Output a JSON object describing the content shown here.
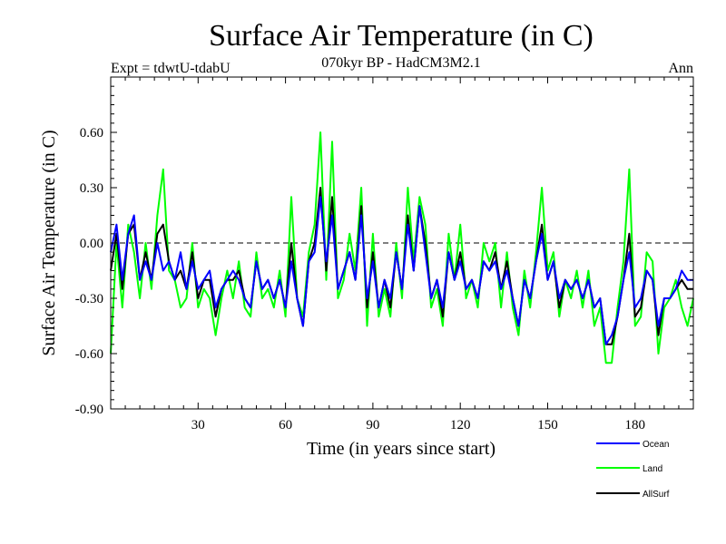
{
  "chart_data": {
    "type": "line",
    "title": "Surface Air Temperature (in C)",
    "subtitle": "070kyr BP - HadCM3M2.1",
    "expt_label": "Expt = tdwtU-tdabU",
    "period_label": "Ann",
    "xlabel": "Time (in years since start)",
    "ylabel": "Surface Air Temperature (in C)",
    "xlim": [
      0,
      200
    ],
    "ylim": [
      -0.9,
      0.9
    ],
    "x_ticks": [
      30,
      60,
      90,
      120,
      150,
      180
    ],
    "x_tick_labels": [
      "30",
      "60",
      "90",
      "120",
      "150",
      "180"
    ],
    "y_ticks": [
      -0.9,
      -0.6,
      -0.3,
      0.0,
      0.3,
      0.6
    ],
    "y_tick_labels": [
      "-0.90",
      "-0.60",
      "-0.30",
      "0.00",
      "0.30",
      "0.60"
    ],
    "zero_line": true,
    "legend_position": "bottom-right, outside plot",
    "series": [
      {
        "name": "Ocean",
        "color": "#0000ff",
        "x": [
          0,
          2,
          4,
          6,
          8,
          10,
          12,
          14,
          16,
          18,
          20,
          22,
          24,
          26,
          28,
          30,
          32,
          34,
          36,
          38,
          40,
          42,
          44,
          46,
          48,
          50,
          52,
          54,
          56,
          58,
          60,
          62,
          64,
          66,
          68,
          70,
          72,
          74,
          76,
          78,
          80,
          82,
          84,
          86,
          88,
          90,
          92,
          94,
          96,
          98,
          100,
          102,
          104,
          106,
          108,
          110,
          112,
          114,
          116,
          118,
          120,
          122,
          124,
          126,
          128,
          130,
          132,
          134,
          136,
          138,
          140,
          142,
          144,
          146,
          148,
          150,
          152,
          154,
          156,
          158,
          160,
          162,
          164,
          166,
          168,
          170,
          172,
          174,
          176,
          178,
          180,
          182,
          184,
          186,
          188,
          190,
          192,
          194,
          196,
          198,
          200
        ],
        "values": [
          -0.05,
          0.1,
          -0.2,
          0.05,
          0.15,
          -0.2,
          -0.1,
          -0.2,
          0.0,
          -0.15,
          -0.1,
          -0.2,
          -0.05,
          -0.25,
          -0.1,
          -0.25,
          -0.2,
          -0.15,
          -0.35,
          -0.25,
          -0.2,
          -0.15,
          -0.2,
          -0.3,
          -0.35,
          -0.1,
          -0.25,
          -0.2,
          -0.3,
          -0.2,
          -0.35,
          -0.1,
          -0.3,
          -0.45,
          -0.1,
          -0.05,
          0.25,
          -0.1,
          0.15,
          -0.25,
          -0.15,
          -0.05,
          -0.2,
          0.15,
          -0.3,
          -0.1,
          -0.35,
          -0.2,
          -0.3,
          -0.05,
          -0.25,
          0.1,
          -0.15,
          0.2,
          -0.05,
          -0.3,
          -0.2,
          -0.35,
          -0.05,
          -0.2,
          -0.1,
          -0.25,
          -0.2,
          -0.3,
          -0.1,
          -0.15,
          -0.1,
          -0.25,
          -0.15,
          -0.3,
          -0.45,
          -0.2,
          -0.3,
          -0.1,
          0.05,
          -0.2,
          -0.1,
          -0.3,
          -0.2,
          -0.25,
          -0.2,
          -0.3,
          -0.2,
          -0.35,
          -0.3,
          -0.55,
          -0.5,
          -0.4,
          -0.2,
          -0.05,
          -0.35,
          -0.3,
          -0.15,
          -0.2,
          -0.45,
          -0.3,
          -0.3,
          -0.25,
          -0.15,
          -0.2,
          -0.2
        ]
      },
      {
        "name": "Land",
        "color": "#00ff00",
        "x": [
          0,
          2,
          4,
          6,
          8,
          10,
          12,
          14,
          16,
          18,
          20,
          22,
          24,
          26,
          28,
          30,
          32,
          34,
          36,
          38,
          40,
          42,
          44,
          46,
          48,
          50,
          52,
          54,
          56,
          58,
          60,
          62,
          64,
          66,
          68,
          70,
          72,
          74,
          76,
          78,
          80,
          82,
          84,
          86,
          88,
          90,
          92,
          94,
          96,
          98,
          100,
          102,
          104,
          106,
          108,
          110,
          112,
          114,
          116,
          118,
          120,
          122,
          124,
          126,
          128,
          130,
          132,
          134,
          136,
          138,
          140,
          142,
          144,
          146,
          148,
          150,
          152,
          154,
          156,
          158,
          160,
          162,
          164,
          166,
          168,
          170,
          172,
          174,
          176,
          178,
          180,
          182,
          184,
          186,
          188,
          190,
          192,
          194,
          196,
          198,
          200
        ],
        "values": [
          -0.6,
          0.0,
          -0.35,
          0.1,
          -0.05,
          -0.3,
          0.0,
          -0.25,
          0.15,
          0.4,
          -0.15,
          -0.2,
          -0.35,
          -0.3,
          0.0,
          -0.35,
          -0.25,
          -0.3,
          -0.5,
          -0.3,
          -0.15,
          -0.3,
          -0.1,
          -0.35,
          -0.4,
          -0.05,
          -0.3,
          -0.25,
          -0.35,
          -0.15,
          -0.4,
          0.25,
          -0.3,
          -0.4,
          -0.05,
          0.1,
          0.6,
          -0.2,
          0.55,
          -0.3,
          -0.2,
          0.05,
          -0.15,
          0.3,
          -0.45,
          0.05,
          -0.4,
          -0.25,
          -0.4,
          0.0,
          -0.3,
          0.3,
          -0.1,
          0.25,
          0.1,
          -0.35,
          -0.25,
          -0.45,
          0.05,
          -0.2,
          0.1,
          -0.3,
          -0.2,
          -0.35,
          0.0,
          -0.1,
          0.0,
          -0.35,
          -0.05,
          -0.35,
          -0.5,
          -0.15,
          -0.35,
          -0.05,
          0.3,
          -0.15,
          -0.05,
          -0.4,
          -0.2,
          -0.3,
          -0.15,
          -0.35,
          -0.15,
          -0.45,
          -0.35,
          -0.65,
          -0.65,
          -0.35,
          -0.1,
          0.4,
          -0.45,
          -0.4,
          -0.05,
          -0.1,
          -0.6,
          -0.35,
          -0.3,
          -0.2,
          -0.35,
          -0.45,
          -0.3
        ]
      },
      {
        "name": "AllSurf",
        "color": "#000000",
        "x": [
          0,
          2,
          4,
          6,
          8,
          10,
          12,
          14,
          16,
          18,
          20,
          22,
          24,
          26,
          28,
          30,
          32,
          34,
          36,
          38,
          40,
          42,
          44,
          46,
          48,
          50,
          52,
          54,
          56,
          58,
          60,
          62,
          64,
          66,
          68,
          70,
          72,
          74,
          76,
          78,
          80,
          82,
          84,
          86,
          88,
          90,
          92,
          94,
          96,
          98,
          100,
          102,
          104,
          106,
          108,
          110,
          112,
          114,
          116,
          118,
          120,
          122,
          124,
          126,
          128,
          130,
          132,
          134,
          136,
          138,
          140,
          142,
          144,
          146,
          148,
          150,
          152,
          154,
          156,
          158,
          160,
          162,
          164,
          166,
          168,
          170,
          172,
          174,
          176,
          178,
          180,
          182,
          184,
          186,
          188,
          190,
          192,
          194,
          196,
          198,
          200
        ],
        "values": [
          -0.15,
          0.05,
          -0.25,
          0.05,
          0.1,
          -0.2,
          -0.05,
          -0.2,
          0.05,
          0.1,
          -0.1,
          -0.2,
          -0.15,
          -0.25,
          -0.05,
          -0.3,
          -0.2,
          -0.2,
          -0.4,
          -0.25,
          -0.2,
          -0.2,
          -0.15,
          -0.3,
          -0.35,
          -0.1,
          -0.25,
          -0.2,
          -0.3,
          -0.2,
          -0.35,
          0.0,
          -0.3,
          -0.45,
          -0.1,
          0.0,
          0.3,
          -0.15,
          0.25,
          -0.25,
          -0.15,
          -0.05,
          -0.2,
          0.2,
          -0.35,
          -0.05,
          -0.35,
          -0.2,
          -0.35,
          -0.05,
          -0.25,
          0.15,
          -0.15,
          0.2,
          0.0,
          -0.3,
          -0.2,
          -0.4,
          -0.05,
          -0.2,
          -0.05,
          -0.25,
          -0.2,
          -0.3,
          -0.1,
          -0.15,
          -0.05,
          -0.25,
          -0.1,
          -0.3,
          -0.45,
          -0.2,
          -0.3,
          -0.1,
          0.1,
          -0.2,
          -0.1,
          -0.35,
          -0.2,
          -0.25,
          -0.2,
          -0.3,
          -0.2,
          -0.35,
          -0.3,
          -0.55,
          -0.55,
          -0.4,
          -0.2,
          0.05,
          -0.4,
          -0.35,
          -0.15,
          -0.2,
          -0.5,
          -0.3,
          -0.3,
          -0.25,
          -0.2,
          -0.25,
          -0.25
        ]
      }
    ]
  }
}
